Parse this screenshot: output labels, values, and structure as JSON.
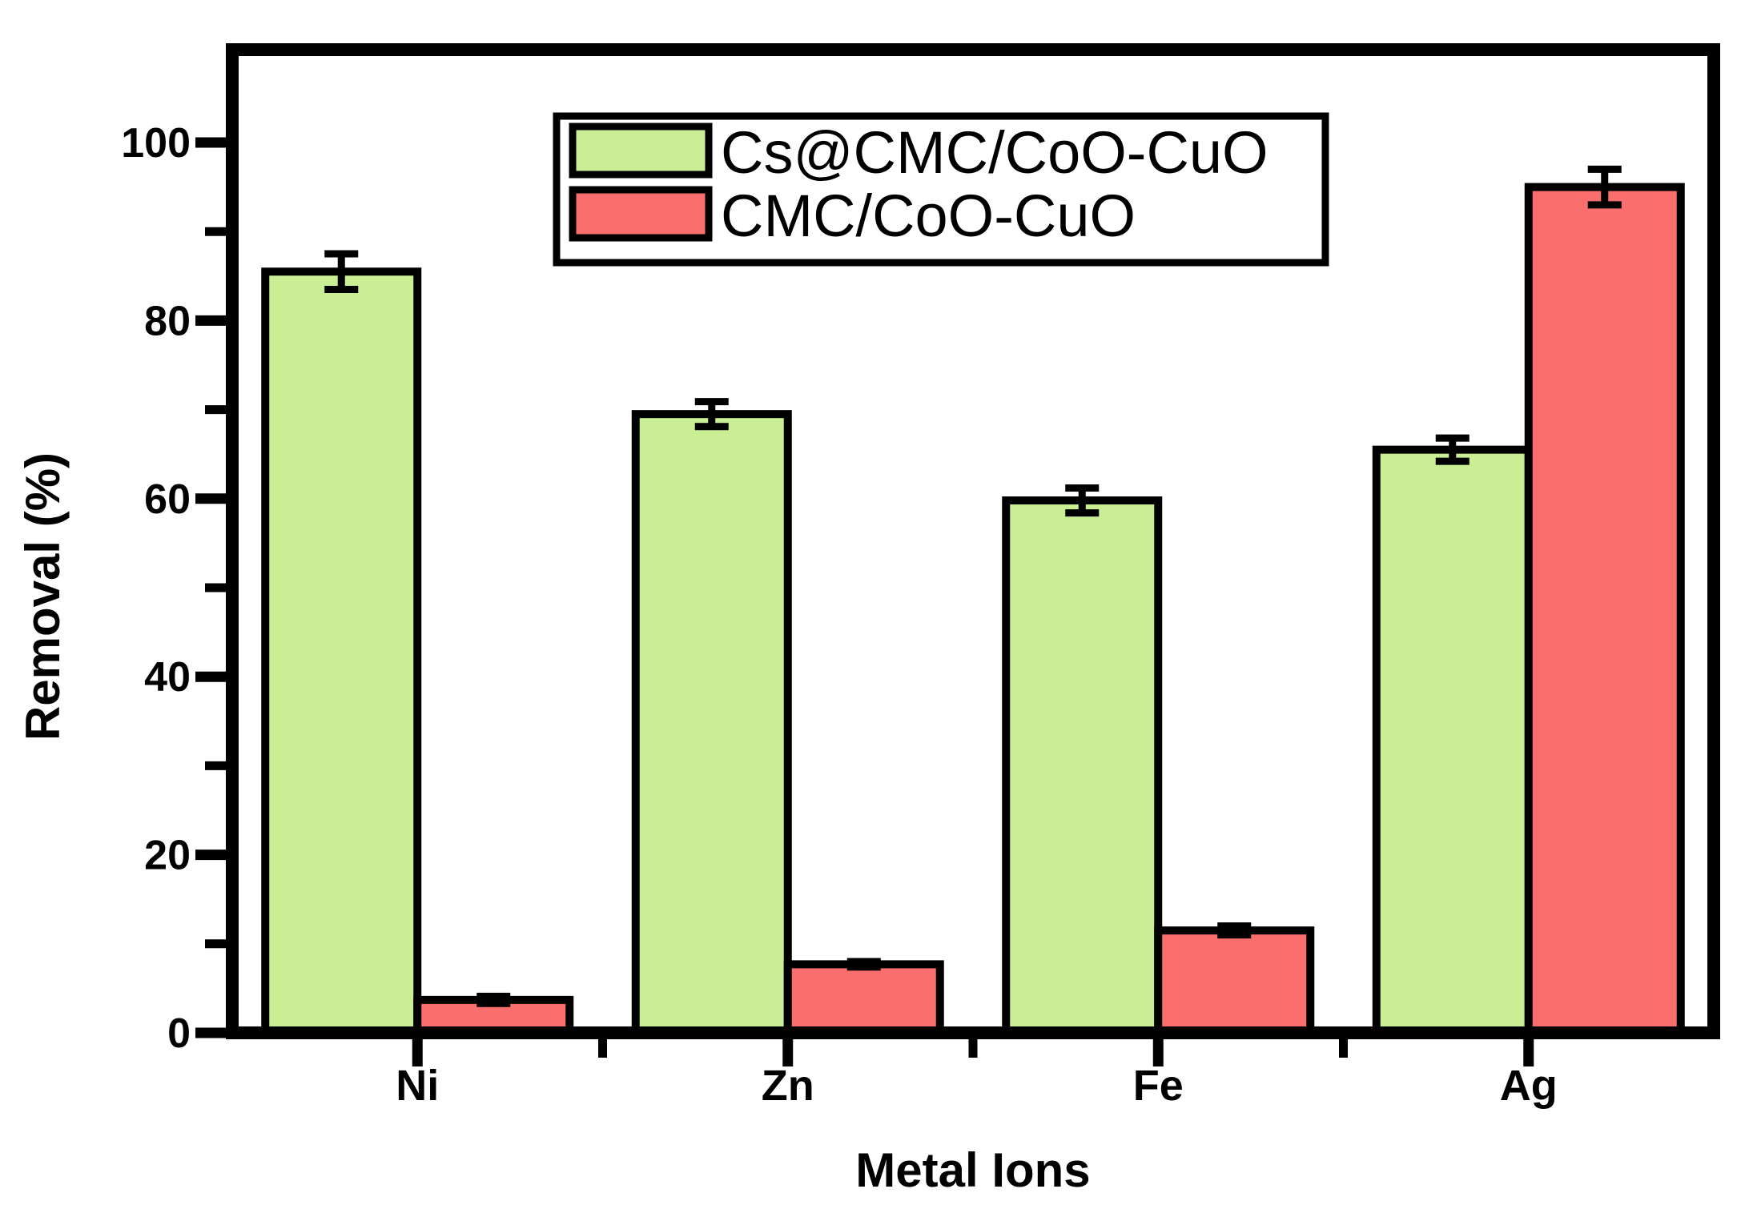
{
  "figure": {
    "background_color": "#ffffff",
    "axis_color": "#000000",
    "bar_edge_color": "#000000"
  },
  "chart_data": {
    "type": "bar",
    "title": "",
    "xlabel": "Metal Ions",
    "ylabel": "Removal (%)",
    "categories": [
      "Ni",
      "Zn",
      "Fe",
      "Ag"
    ],
    "series": [
      {
        "name": "Cs@CMC/CoO-CuO",
        "color": "#caee94",
        "values": [
          85.5,
          69.5,
          59.8,
          65.5
        ],
        "errors": [
          2.0,
          1.4,
          1.4,
          1.3
        ]
      },
      {
        "name": "CMC/CoO-CuO",
        "color": "#fa6e6e",
        "values": [
          3.7,
          7.7,
          11.5,
          95.0
        ],
        "errors": [
          0.4,
          0.3,
          0.5,
          2.0
        ]
      }
    ],
    "ylim": [
      0,
      110
    ],
    "yticks_major": [
      0,
      20,
      40,
      60,
      80,
      100
    ],
    "yticks_minor": [
      10,
      30,
      50,
      70,
      90
    ],
    "grid": false,
    "legend_position": "top-center-inside",
    "error_bars": true
  }
}
